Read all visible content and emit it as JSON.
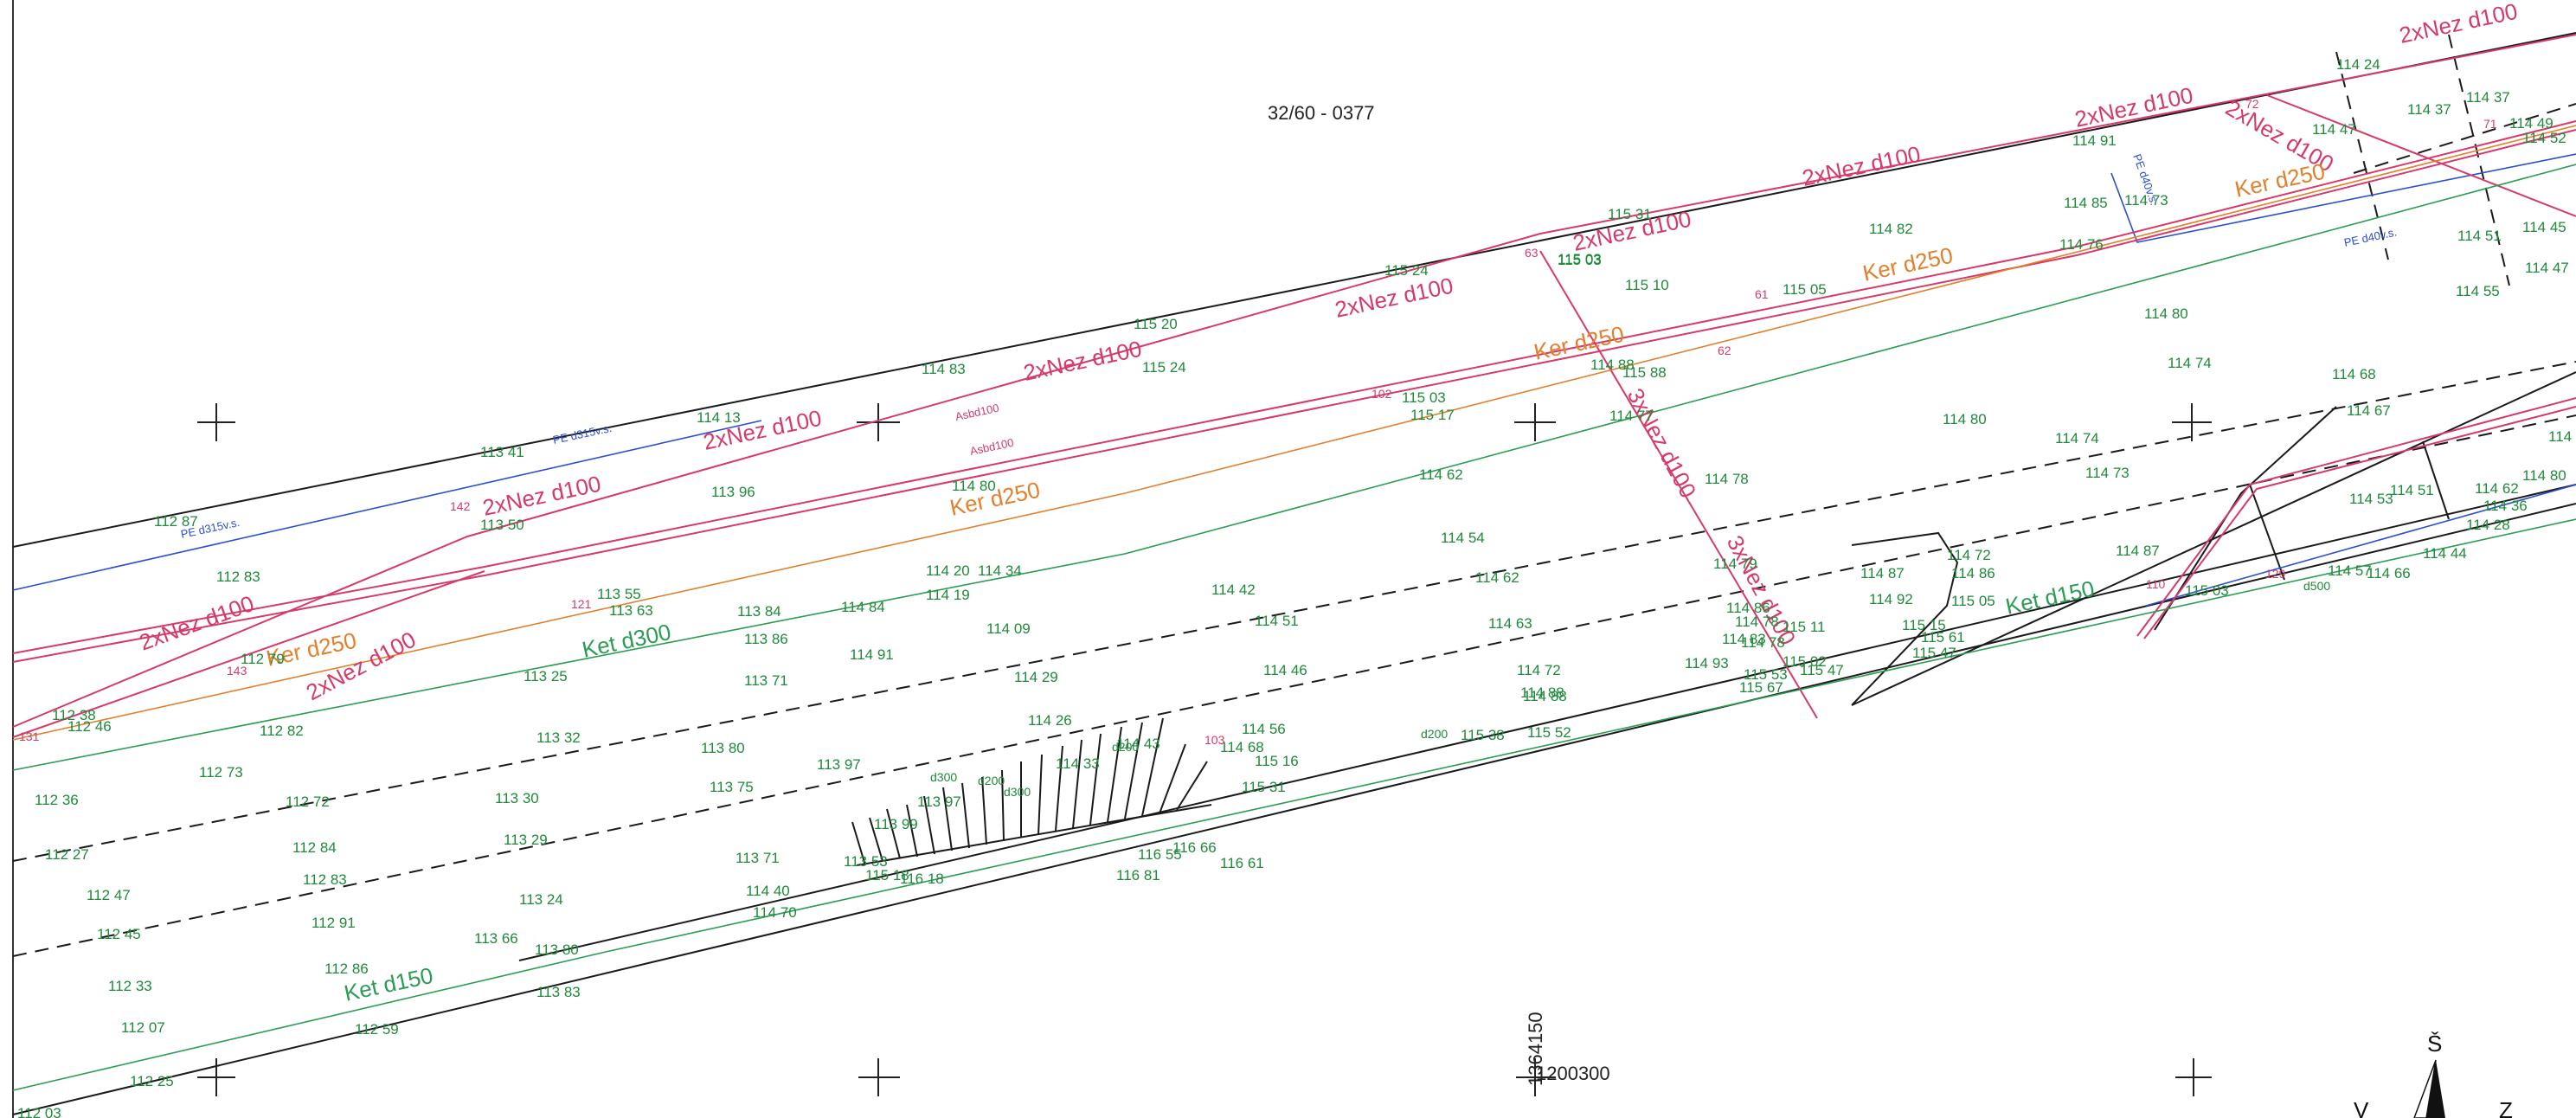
{
  "sheet_number": "32/60 - 0377",
  "grid_label_y": "1364150",
  "grid_label_x": "1200300",
  "north_label": "Š",
  "west_label": "Z",
  "east_label": "V",
  "colors": {
    "water": "#d63a6a",
    "sewer": "#2c9c55",
    "gas": "#2a4fcf",
    "sewer_ker": "#e2802c",
    "elevation": "#1f8a3b",
    "base": "#1a1a1a"
  },
  "utility_labels": [
    {
      "id": "u1",
      "text": "2xNez d100",
      "color": "water"
    },
    {
      "id": "u2",
      "text": "2xNez d100",
      "color": "water"
    },
    {
      "id": "u3",
      "text": "2xNez d100",
      "color": "water"
    },
    {
      "id": "u4",
      "text": "2xNez d100",
      "color": "water"
    },
    {
      "id": "u5",
      "text": "2xNez d100",
      "color": "water"
    },
    {
      "id": "u6",
      "text": "2xNez d100",
      "color": "water"
    },
    {
      "id": "u7",
      "text": "2xNez d100",
      "color": "water"
    },
    {
      "id": "u8",
      "text": "2xNez d100",
      "color": "water"
    },
    {
      "id": "u9",
      "text": "2xNez d100",
      "color": "water"
    },
    {
      "id": "u10",
      "text": "2xNez d100",
      "color": "water"
    },
    {
      "id": "u11",
      "text": "2xNez d100",
      "color": "water"
    },
    {
      "id": "u12",
      "text": "3xNez d100",
      "color": "water"
    },
    {
      "id": "u13",
      "text": "3xNez d100",
      "color": "water"
    },
    {
      "id": "u14",
      "text": "Ker d250",
      "color": "sewer_ker"
    },
    {
      "id": "u15",
      "text": "Ker d250",
      "color": "sewer_ker"
    },
    {
      "id": "u16",
      "text": "Ker d250",
      "color": "sewer_ker"
    },
    {
      "id": "u17",
      "text": "Ker d250",
      "color": "sewer_ker"
    },
    {
      "id": "u18",
      "text": "Ker d250",
      "color": "sewer_ker"
    },
    {
      "id": "u19",
      "text": "Ket d300",
      "color": "sewer"
    },
    {
      "id": "u20",
      "text": "Ket d150",
      "color": "sewer"
    },
    {
      "id": "u21",
      "text": "Ket d150",
      "color": "sewer"
    },
    {
      "id": "u22",
      "text": "PE d315v.s.",
      "color": "gas"
    },
    {
      "id": "u23",
      "text": "PE d315v.s.",
      "color": "gas"
    },
    {
      "id": "u24",
      "text": "PE d40v.s.",
      "color": "gas"
    },
    {
      "id": "u25",
      "text": "PE d40v.s.",
      "color": "gas"
    },
    {
      "id": "u26",
      "text": "Asbd100",
      "color": "water"
    },
    {
      "id": "u27",
      "text": "Asbd100",
      "color": "water"
    }
  ],
  "elevations": [
    "112 87",
    "112 83",
    "112 79",
    "112 46",
    "112 38",
    "112 82",
    "112 73",
    "112 36",
    "112 27",
    "112 47",
    "112 45",
    "112 33",
    "112 07",
    "112 25",
    "112 03",
    "112 72",
    "112 84",
    "112 83",
    "112 91",
    "112 86",
    "112 59",
    "113 41",
    "113 50",
    "113 96",
    "113 55",
    "113 63",
    "113 25",
    "113 32",
    "113 30",
    "113 29",
    "113 24",
    "113 66",
    "113 80",
    "113 83",
    "113 84",
    "113 86",
    "113 71",
    "113 80",
    "113 75",
    "113 71",
    "113 97",
    "113 99",
    "113 97",
    "113 53",
    "114 13",
    "114 83",
    "114 80",
    "114 20",
    "114 34",
    "114 19",
    "114 84",
    "114 91",
    "114 09",
    "114 29",
    "114 26",
    "114 33",
    "114 40",
    "114 70",
    "114 43",
    "114 68",
    "114 56",
    "114 46",
    "114 51",
    "114 42",
    "114 54",
    "114 62",
    "114 62",
    "114 63",
    "114 88",
    "114 72",
    "114 88",
    "114 93",
    "114 78",
    "114 86",
    "114 83",
    "114 79",
    "114 78",
    "114 87",
    "114 92",
    "114 72",
    "114 86",
    "114 82",
    "114 77",
    "114 80",
    "114 74",
    "114 73",
    "114 87",
    "114 91",
    "114 85",
    "114 73",
    "114 76",
    "114 80",
    "114 74",
    "114 68",
    "114 67",
    "114 24",
    "114 47",
    "114 37",
    "114 37",
    "114 49",
    "114 52",
    "114 45",
    "114 51",
    "114 47",
    "114 55",
    "114 50",
    "114 53",
    "114 51",
    "114 62",
    "114 36",
    "114 28",
    "114 44",
    "114 57",
    "114 66",
    "114 80",
    "115 20",
    "115 24",
    "115 24",
    "115 03",
    "115 17",
    "115 03",
    "115 31",
    "115 10",
    "115 05",
    "115 03",
    "115 38",
    "115 52",
    "115 31",
    "115 16",
    "115 67",
    "115 53",
    "115 47",
    "115 05",
    "115 15",
    "115 47",
    "115 11",
    "115 02",
    "115 61",
    "115 88",
    "115 03",
    "116 55",
    "116 66",
    "116 61",
    "116 81",
    "116 18",
    "115 18",
    "114 78",
    "114 88"
  ],
  "point_numbers": [
    "142",
    "143",
    "131",
    "121",
    "102",
    "103",
    "62",
    "63",
    "61",
    "72",
    "110",
    "129",
    "71"
  ],
  "tags": [
    "d200",
    "d200",
    "d300",
    "d300",
    "d200",
    "d500"
  ]
}
